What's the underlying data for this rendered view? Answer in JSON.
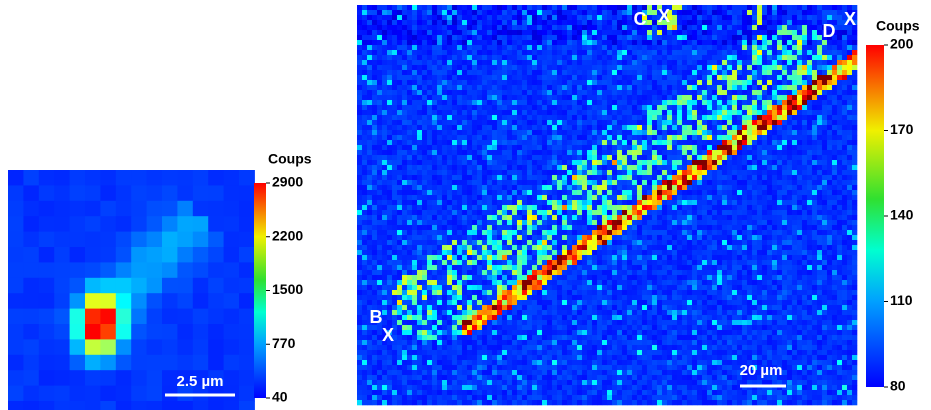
{
  "panels": [
    {
      "colorbar": {
        "title": "Coups",
        "ticks": [
          2900,
          2200,
          1500,
          770,
          40
        ]
      },
      "scale_bar": "2.5 µm"
    },
    {
      "colorbar": {
        "title": "Coups",
        "ticks": [
          200,
          170,
          140,
          110,
          80
        ]
      },
      "scale_bar": "20 µm",
      "markers": [
        "C",
        "X",
        "D",
        "X",
        "B",
        "X"
      ]
    }
  ]
}
